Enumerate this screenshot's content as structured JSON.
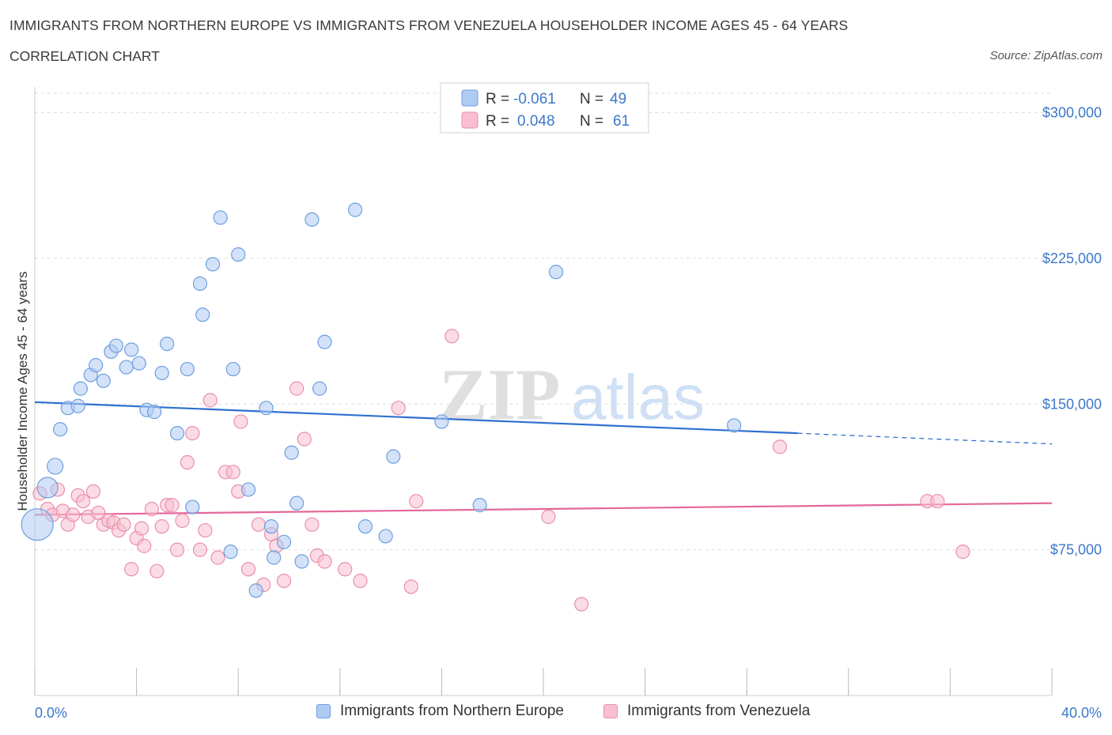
{
  "header": {
    "title": "IMMIGRANTS FROM NORTHERN EUROPE VS IMMIGRANTS FROM VENEZUELA HOUSEHOLDER INCOME AGES 45 - 64 YEARS",
    "subtitle": "CORRELATION CHART",
    "source": "Source: ZipAtlas.com"
  },
  "watermark": {
    "zip": "ZIP",
    "atlas": "atlas"
  },
  "legend": {
    "blue": {
      "r_label": "R =",
      "r_value": "-0.061",
      "n_label": "N =",
      "n_value": "49"
    },
    "pink": {
      "r_label": "R =",
      "r_value": "0.048",
      "n_label": "N =",
      "n_value": "61"
    }
  },
  "colors": {
    "blue_fill": "#aecbf2",
    "blue_stroke": "#6c9fe0",
    "blue_line": "#2f6fd0",
    "pink_fill": "#f7bfd0",
    "pink_stroke": "#ea8fac",
    "pink_line": "#e4679a",
    "axis_text": "#3b78c9",
    "grid": "#dddddd"
  },
  "chart_data": {
    "type": "scatter",
    "title": "IMMIGRANTS FROM NORTHERN EUROPE VS IMMIGRANTS FROM VENEZUELA HOUSEHOLDER INCOME AGES 45 - 64 YEARS",
    "xlabel": "",
    "ylabel": "Householder Income Ages 45 - 64 years",
    "xlim": [
      0,
      40
    ],
    "ylim": [
      0,
      310000
    ],
    "x_tick_labels": [
      "0.0%",
      "40.0%"
    ],
    "y_ticks": [
      75000,
      150000,
      225000,
      300000
    ],
    "y_tick_labels": [
      "$75,000",
      "$150,000",
      "$225,000",
      "$300,000"
    ],
    "grid": true,
    "legend_position": "top-center",
    "series": [
      {
        "name": "Immigrants from Northern Europe",
        "color": "#aecbf2",
        "trend": {
          "x": [
            0,
            30
          ],
          "y": [
            151000,
            135000
          ],
          "dashed_to": [
            40,
            129500
          ]
        },
        "points": [
          [
            0.1,
            88000
          ],
          [
            0.5,
            107000
          ],
          [
            0.8,
            118000
          ],
          [
            1.0,
            137000
          ],
          [
            1.3,
            148000
          ],
          [
            1.7,
            149000
          ],
          [
            1.8,
            158000
          ],
          [
            2.2,
            165000
          ],
          [
            2.4,
            170000
          ],
          [
            2.7,
            162000
          ],
          [
            3.0,
            177000
          ],
          [
            3.2,
            180000
          ],
          [
            3.6,
            169000
          ],
          [
            3.8,
            178000
          ],
          [
            4.1,
            171000
          ],
          [
            4.4,
            147000
          ],
          [
            4.7,
            146000
          ],
          [
            5.0,
            166000
          ],
          [
            5.2,
            181000
          ],
          [
            5.6,
            135000
          ],
          [
            6.0,
            168000
          ],
          [
            6.2,
            97000
          ],
          [
            6.5,
            212000
          ],
          [
            6.6,
            196000
          ],
          [
            7.0,
            222000
          ],
          [
            7.3,
            246000
          ],
          [
            7.7,
            74000
          ],
          [
            7.8,
            168000
          ],
          [
            8.0,
            227000
          ],
          [
            8.4,
            106000
          ],
          [
            8.7,
            54000
          ],
          [
            9.1,
            148000
          ],
          [
            9.3,
            87000
          ],
          [
            9.4,
            71000
          ],
          [
            9.8,
            79000
          ],
          [
            10.1,
            125000
          ],
          [
            10.3,
            99000
          ],
          [
            10.5,
            69000
          ],
          [
            10.9,
            245000
          ],
          [
            11.2,
            158000
          ],
          [
            11.4,
            182000
          ],
          [
            12.6,
            250000
          ],
          [
            13.0,
            87000
          ],
          [
            13.8,
            82000
          ],
          [
            14.1,
            123000
          ],
          [
            16.0,
            141000
          ],
          [
            17.5,
            98000
          ],
          [
            20.5,
            218000
          ],
          [
            27.5,
            139000
          ]
        ]
      },
      {
        "name": "Immigrants from Venezuela",
        "color": "#f7bfd0",
        "trend": {
          "x": [
            0,
            40
          ],
          "y": [
            93000,
            99000
          ]
        },
        "points": [
          [
            0.2,
            104000
          ],
          [
            0.5,
            96000
          ],
          [
            0.7,
            93000
          ],
          [
            0.9,
            106000
          ],
          [
            1.1,
            95000
          ],
          [
            1.3,
            88000
          ],
          [
            1.5,
            93000
          ],
          [
            1.7,
            103000
          ],
          [
            1.9,
            100000
          ],
          [
            2.1,
            92000
          ],
          [
            2.3,
            105000
          ],
          [
            2.5,
            94000
          ],
          [
            2.7,
            88000
          ],
          [
            2.9,
            90000
          ],
          [
            3.1,
            89000
          ],
          [
            3.3,
            85000
          ],
          [
            3.5,
            88000
          ],
          [
            3.8,
            65000
          ],
          [
            4.0,
            81000
          ],
          [
            4.2,
            86000
          ],
          [
            4.3,
            77000
          ],
          [
            4.6,
            96000
          ],
          [
            4.8,
            64000
          ],
          [
            5.0,
            87000
          ],
          [
            5.2,
            98000
          ],
          [
            5.4,
            98000
          ],
          [
            5.6,
            75000
          ],
          [
            5.8,
            90000
          ],
          [
            6.0,
            120000
          ],
          [
            6.2,
            135000
          ],
          [
            6.5,
            75000
          ],
          [
            6.7,
            85000
          ],
          [
            6.9,
            152000
          ],
          [
            7.2,
            71000
          ],
          [
            7.5,
            115000
          ],
          [
            7.8,
            115000
          ],
          [
            8.0,
            105000
          ],
          [
            8.1,
            141000
          ],
          [
            8.4,
            65000
          ],
          [
            8.8,
            88000
          ],
          [
            9.0,
            57000
          ],
          [
            9.3,
            83000
          ],
          [
            9.5,
            77000
          ],
          [
            9.8,
            59000
          ],
          [
            10.3,
            158000
          ],
          [
            10.6,
            132000
          ],
          [
            10.9,
            88000
          ],
          [
            11.1,
            72000
          ],
          [
            11.4,
            69000
          ],
          [
            12.2,
            65000
          ],
          [
            12.8,
            59000
          ],
          [
            14.3,
            148000
          ],
          [
            14.8,
            56000
          ],
          [
            15.0,
            100000
          ],
          [
            16.4,
            185000
          ],
          [
            20.2,
            92000
          ],
          [
            21.5,
            47000
          ],
          [
            29.3,
            128000
          ],
          [
            35.1,
            100000
          ],
          [
            35.5,
            100000
          ],
          [
            36.5,
            74000
          ]
        ]
      }
    ]
  }
}
